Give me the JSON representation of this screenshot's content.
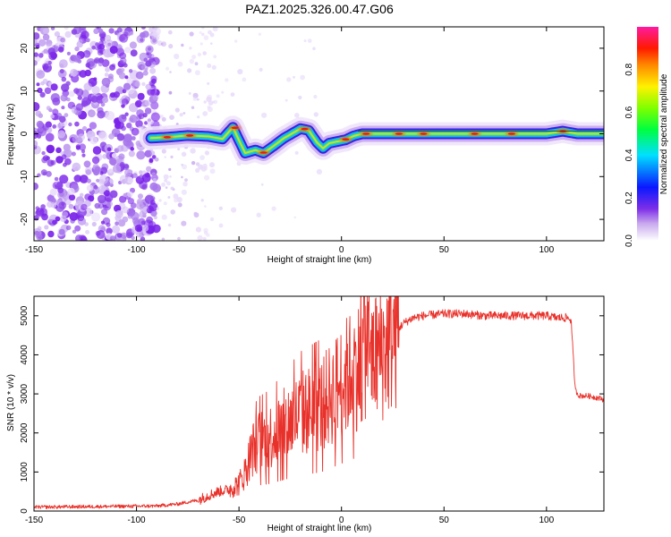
{
  "chart_data": [
    {
      "type": "heatmap",
      "title": "PAZ1.2025.326.00.47.G06",
      "xlabel": "Height of straight line (km)",
      "ylabel": "Frequency (Hz)",
      "xlim": [
        -150,
        128
      ],
      "ylim": [
        -25,
        25
      ],
      "xticks": [
        "-150",
        "-100",
        "-50",
        "0",
        "50",
        "100"
      ],
      "yticks": [
        "20",
        "10",
        "0",
        "-10",
        "-20"
      ],
      "ridge": {
        "x": [
          -93,
          -85,
          -75,
          -65,
          -58,
          -53,
          -47,
          -42,
          -38,
          -33,
          -28,
          -24,
          -20,
          -16,
          -12,
          -9,
          -6,
          -2,
          2,
          6,
          10,
          20,
          40,
          60,
          80,
          100,
          108,
          115,
          128
        ],
        "freq": [
          -1,
          -0.8,
          -0.4,
          -0.6,
          -1.2,
          1.5,
          -4.5,
          -3.8,
          -4.5,
          -2.8,
          -1.0,
          0.1,
          1.2,
          0.8,
          -2.0,
          -3.4,
          -2.2,
          -1.8,
          -1.4,
          -0.5,
          0.0,
          0.0,
          0.0,
          0.0,
          0.0,
          0.0,
          0.6,
          0.0,
          0.0
        ]
      },
      "colorbar": {
        "label": "Normalized spectral amplitude",
        "ticks": [
          "0.0",
          "0.2",
          "0.4",
          "0.6",
          "0.8"
        ],
        "range": [
          0,
          1
        ]
      }
    },
    {
      "type": "line",
      "xlabel": "Height of straight line (km)",
      "ylabel": "SNR (10 * v/v)",
      "xlim": [
        -150,
        128
      ],
      "ylim": [
        0,
        5500
      ],
      "xticks": [
        "-150",
        "-100",
        "-50",
        "0",
        "50",
        "100"
      ],
      "yticks": [
        "0",
        "1000",
        "2000",
        "3000",
        "4000",
        "5000"
      ],
      "color": "#e8312a",
      "series": [
        {
          "name": "SNR",
          "x": [
            -150,
            -130,
            -110,
            -90,
            -80,
            -70,
            -65,
            -60,
            -55,
            -50,
            -47,
            -44,
            -42,
            -40,
            -35,
            -30,
            -25,
            -20,
            -15,
            -10,
            -5,
            0,
            5,
            10,
            12,
            15,
            20,
            25,
            30,
            35,
            40,
            50,
            60,
            70,
            80,
            90,
            100,
            105,
            110,
            112,
            114,
            116,
            120,
            125,
            128
          ],
          "values": [
            100,
            110,
            120,
            130,
            180,
            280,
            400,
            500,
            550,
            700,
            1000,
            1500,
            1700,
            1800,
            1900,
            2100,
            2300,
            2500,
            2600,
            2700,
            3000,
            3300,
            3600,
            3800,
            4300,
            3900,
            4100,
            4500,
            4800,
            4950,
            5000,
            5050,
            5050,
            5000,
            5000,
            5000,
            5000,
            4950,
            4950,
            4900,
            3100,
            2950,
            2950,
            2900,
            2850
          ]
        }
      ]
    }
  ]
}
